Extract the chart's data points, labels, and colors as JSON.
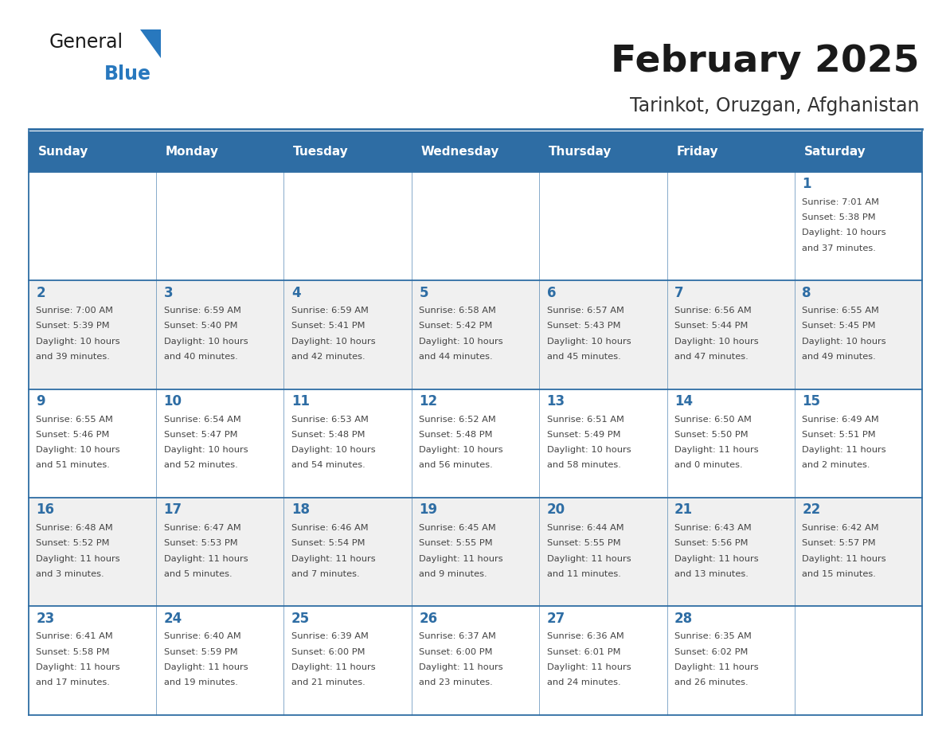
{
  "title": "February 2025",
  "subtitle": "Tarinkot, Oruzgan, Afghanistan",
  "days_of_week": [
    "Sunday",
    "Monday",
    "Tuesday",
    "Wednesday",
    "Thursday",
    "Friday",
    "Saturday"
  ],
  "header_bg": "#2E6DA4",
  "header_text_color": "#FFFFFF",
  "cell_bg_light": "#FFFFFF",
  "cell_bg_alt": "#F0F0F0",
  "border_color": "#2E6DA4",
  "day_num_color": "#2E6DA4",
  "info_text_color": "#444444",
  "title_color": "#1a1a1a",
  "subtitle_color": "#333333",
  "logo_general_color": "#1a1a1a",
  "logo_blue_color": "#2878BE",
  "weeks": [
    [
      {
        "day": null,
        "sunrise": null,
        "sunset": null,
        "daylight": null
      },
      {
        "day": null,
        "sunrise": null,
        "sunset": null,
        "daylight": null
      },
      {
        "day": null,
        "sunrise": null,
        "sunset": null,
        "daylight": null
      },
      {
        "day": null,
        "sunrise": null,
        "sunset": null,
        "daylight": null
      },
      {
        "day": null,
        "sunrise": null,
        "sunset": null,
        "daylight": null
      },
      {
        "day": null,
        "sunrise": null,
        "sunset": null,
        "daylight": null
      },
      {
        "day": 1,
        "sunrise": "7:01 AM",
        "sunset": "5:38 PM",
        "daylight": "10 hours\nand 37 minutes."
      }
    ],
    [
      {
        "day": 2,
        "sunrise": "7:00 AM",
        "sunset": "5:39 PM",
        "daylight": "10 hours\nand 39 minutes."
      },
      {
        "day": 3,
        "sunrise": "6:59 AM",
        "sunset": "5:40 PM",
        "daylight": "10 hours\nand 40 minutes."
      },
      {
        "day": 4,
        "sunrise": "6:59 AM",
        "sunset": "5:41 PM",
        "daylight": "10 hours\nand 42 minutes."
      },
      {
        "day": 5,
        "sunrise": "6:58 AM",
        "sunset": "5:42 PM",
        "daylight": "10 hours\nand 44 minutes."
      },
      {
        "day": 6,
        "sunrise": "6:57 AM",
        "sunset": "5:43 PM",
        "daylight": "10 hours\nand 45 minutes."
      },
      {
        "day": 7,
        "sunrise": "6:56 AM",
        "sunset": "5:44 PM",
        "daylight": "10 hours\nand 47 minutes."
      },
      {
        "day": 8,
        "sunrise": "6:55 AM",
        "sunset": "5:45 PM",
        "daylight": "10 hours\nand 49 minutes."
      }
    ],
    [
      {
        "day": 9,
        "sunrise": "6:55 AM",
        "sunset": "5:46 PM",
        "daylight": "10 hours\nand 51 minutes."
      },
      {
        "day": 10,
        "sunrise": "6:54 AM",
        "sunset": "5:47 PM",
        "daylight": "10 hours\nand 52 minutes."
      },
      {
        "day": 11,
        "sunrise": "6:53 AM",
        "sunset": "5:48 PM",
        "daylight": "10 hours\nand 54 minutes."
      },
      {
        "day": 12,
        "sunrise": "6:52 AM",
        "sunset": "5:48 PM",
        "daylight": "10 hours\nand 56 minutes."
      },
      {
        "day": 13,
        "sunrise": "6:51 AM",
        "sunset": "5:49 PM",
        "daylight": "10 hours\nand 58 minutes."
      },
      {
        "day": 14,
        "sunrise": "6:50 AM",
        "sunset": "5:50 PM",
        "daylight": "11 hours\nand 0 minutes."
      },
      {
        "day": 15,
        "sunrise": "6:49 AM",
        "sunset": "5:51 PM",
        "daylight": "11 hours\nand 2 minutes."
      }
    ],
    [
      {
        "day": 16,
        "sunrise": "6:48 AM",
        "sunset": "5:52 PM",
        "daylight": "11 hours\nand 3 minutes."
      },
      {
        "day": 17,
        "sunrise": "6:47 AM",
        "sunset": "5:53 PM",
        "daylight": "11 hours\nand 5 minutes."
      },
      {
        "day": 18,
        "sunrise": "6:46 AM",
        "sunset": "5:54 PM",
        "daylight": "11 hours\nand 7 minutes."
      },
      {
        "day": 19,
        "sunrise": "6:45 AM",
        "sunset": "5:55 PM",
        "daylight": "11 hours\nand 9 minutes."
      },
      {
        "day": 20,
        "sunrise": "6:44 AM",
        "sunset": "5:55 PM",
        "daylight": "11 hours\nand 11 minutes."
      },
      {
        "day": 21,
        "sunrise": "6:43 AM",
        "sunset": "5:56 PM",
        "daylight": "11 hours\nand 13 minutes."
      },
      {
        "day": 22,
        "sunrise": "6:42 AM",
        "sunset": "5:57 PM",
        "daylight": "11 hours\nand 15 minutes."
      }
    ],
    [
      {
        "day": 23,
        "sunrise": "6:41 AM",
        "sunset": "5:58 PM",
        "daylight": "11 hours\nand 17 minutes."
      },
      {
        "day": 24,
        "sunrise": "6:40 AM",
        "sunset": "5:59 PM",
        "daylight": "11 hours\nand 19 minutes."
      },
      {
        "day": 25,
        "sunrise": "6:39 AM",
        "sunset": "6:00 PM",
        "daylight": "11 hours\nand 21 minutes."
      },
      {
        "day": 26,
        "sunrise": "6:37 AM",
        "sunset": "6:00 PM",
        "daylight": "11 hours\nand 23 minutes."
      },
      {
        "day": 27,
        "sunrise": "6:36 AM",
        "sunset": "6:01 PM",
        "daylight": "11 hours\nand 24 minutes."
      },
      {
        "day": 28,
        "sunrise": "6:35 AM",
        "sunset": "6:02 PM",
        "daylight": "11 hours\nand 26 minutes."
      },
      {
        "day": null,
        "sunrise": null,
        "sunset": null,
        "daylight": null
      }
    ]
  ]
}
